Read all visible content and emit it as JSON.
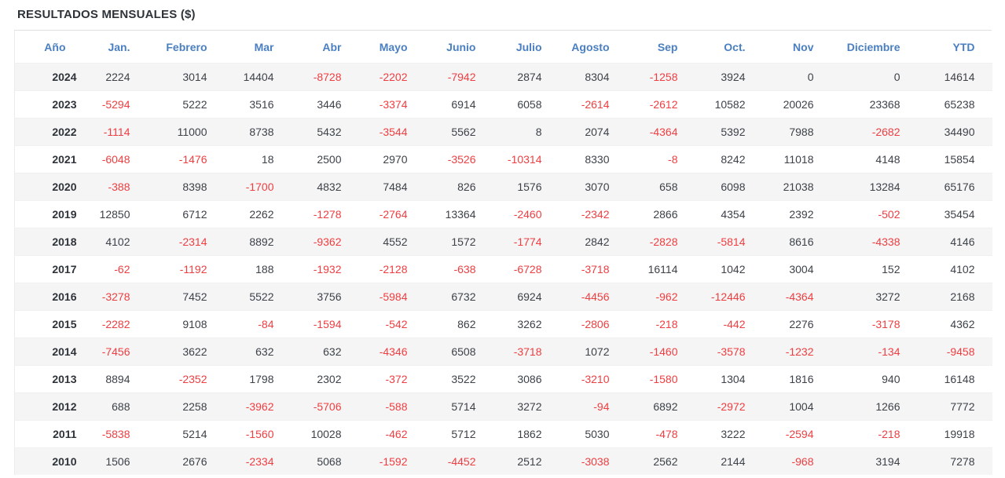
{
  "title": "RESULTADOS MENSUALES ($)",
  "colors": {
    "header_blue": "#4a7fc1",
    "negative_red": "#ef3e41",
    "positive_dark": "#3d4249",
    "title_dark": "#2e333a",
    "stripe_bg": "#f5f5f5"
  },
  "chart_data": {
    "type": "table",
    "title": "RESULTADOS MENSUALES ($)",
    "columns": [
      "Año",
      "Jan.",
      "Febrero",
      "Mar",
      "Abr",
      "Mayo",
      "Junio",
      "Julio",
      "Agosto",
      "Sep",
      "Oct.",
      "Nov",
      "Diciembre",
      "YTD"
    ],
    "rows": [
      {
        "year": "2024",
        "values": [
          2224,
          3014,
          14404,
          -8728,
          -2202,
          -7942,
          2874,
          8304,
          -1258,
          3924,
          0,
          0,
          14614
        ]
      },
      {
        "year": "2023",
        "values": [
          -5294,
          5222,
          3516,
          3446,
          -3374,
          6914,
          6058,
          -2614,
          -2612,
          10582,
          20026,
          23368,
          65238
        ]
      },
      {
        "year": "2022",
        "values": [
          -1114,
          11000,
          8738,
          5432,
          -3544,
          5562,
          8,
          2074,
          -4364,
          5392,
          7988,
          -2682,
          34490
        ]
      },
      {
        "year": "2021",
        "values": [
          -6048,
          -1476,
          18,
          2500,
          2970,
          -3526,
          -10314,
          8330,
          -8,
          8242,
          11018,
          4148,
          15854
        ]
      },
      {
        "year": "2020",
        "values": [
          -388,
          8398,
          -1700,
          4832,
          7484,
          826,
          1576,
          3070,
          658,
          6098,
          21038,
          13284,
          65176
        ]
      },
      {
        "year": "2019",
        "values": [
          12850,
          6712,
          2262,
          -1278,
          -2764,
          13364,
          -2460,
          -2342,
          2866,
          4354,
          2392,
          -502,
          35454
        ]
      },
      {
        "year": "2018",
        "values": [
          4102,
          -2314,
          8892,
          -9362,
          4552,
          1572,
          -1774,
          2842,
          -2828,
          -5814,
          8616,
          -4338,
          4146
        ]
      },
      {
        "year": "2017",
        "values": [
          -62,
          -1192,
          188,
          -1932,
          -2128,
          -638,
          -6728,
          -3718,
          16114,
          1042,
          3004,
          152,
          4102
        ]
      },
      {
        "year": "2016",
        "values": [
          -3278,
          7452,
          5522,
          3756,
          -5984,
          6732,
          6924,
          -4456,
          -962,
          -12446,
          -4364,
          3272,
          2168
        ]
      },
      {
        "year": "2015",
        "values": [
          -2282,
          9108,
          -84,
          -1594,
          -542,
          862,
          3262,
          -2806,
          -218,
          -442,
          2276,
          -3178,
          4362
        ]
      },
      {
        "year": "2014",
        "values": [
          -7456,
          3622,
          632,
          632,
          -4346,
          6508,
          -3718,
          1072,
          -1460,
          -3578,
          -1232,
          -134,
          -9458
        ]
      },
      {
        "year": "2013",
        "values": [
          8894,
          -2352,
          1798,
          2302,
          -372,
          3522,
          3086,
          -3210,
          -1580,
          1304,
          1816,
          940,
          16148
        ]
      },
      {
        "year": "2012",
        "values": [
          688,
          2258,
          -3962,
          -5706,
          -588,
          5714,
          3272,
          -94,
          6892,
          -2972,
          1004,
          1266,
          7772
        ]
      },
      {
        "year": "2011",
        "values": [
          -5838,
          5214,
          -1560,
          10028,
          -462,
          5712,
          1862,
          5030,
          -478,
          3222,
          -2594,
          -218,
          19918
        ]
      },
      {
        "year": "2010",
        "values": [
          1506,
          2676,
          -2334,
          5068,
          -1592,
          -4452,
          2512,
          -3038,
          2562,
          2144,
          -968,
          3194,
          7278
        ]
      }
    ],
    "layout": {
      "negative_values_in_red": true,
      "striped_rows": true,
      "first_striped_row_year": "2024"
    }
  }
}
